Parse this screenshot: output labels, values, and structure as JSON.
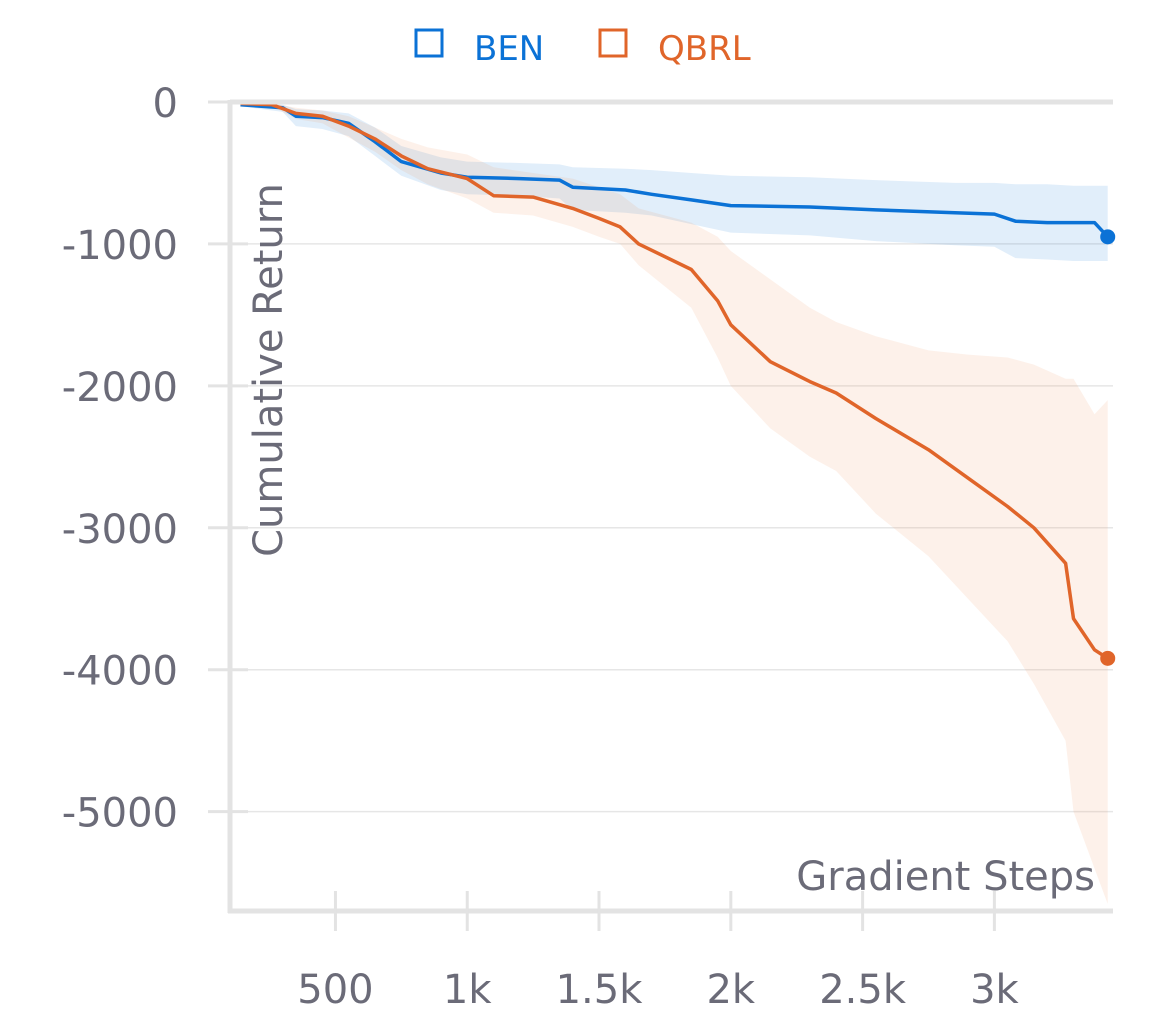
{
  "chart_data": {
    "type": "line",
    "title": "",
    "xlabel": "Gradient Steps",
    "ylabel": "Cumulative Return",
    "xlim": [
      100,
      3450
    ],
    "ylim": [
      -5700,
      0
    ],
    "x_ticks": [
      500,
      1000,
      1500,
      2000,
      2500,
      3000
    ],
    "x_tick_labels": [
      "500",
      "1k",
      "1.5k",
      "2k",
      "2.5k",
      "3k"
    ],
    "y_ticks": [
      0,
      -1000,
      -2000,
      -3000,
      -4000,
      -5000
    ],
    "y_tick_labels": [
      "0",
      "-1000",
      "-2000",
      "-3000",
      "-4000",
      "-5000"
    ],
    "grid": "horizontal",
    "legend_position": "top-center",
    "series": [
      {
        "name": "BEN",
        "color": "#0b72d6",
        "band_color": "#0b72d6",
        "x": [
          140,
          300,
          350,
          450,
          550,
          650,
          750,
          900,
          1000,
          1200,
          1350,
          1400,
          1600,
          1700,
          1850,
          2000,
          2300,
          2550,
          2850,
          3000,
          3080,
          3200,
          3300,
          3380,
          3430
        ],
        "y": [
          -20,
          -40,
          -100,
          -110,
          -150,
          -280,
          -420,
          -500,
          -530,
          -540,
          -550,
          -600,
          -620,
          -650,
          -690,
          -730,
          -740,
          -760,
          -780,
          -790,
          -840,
          -850,
          -850,
          -850,
          -950
        ],
        "upper": [
          -10,
          -20,
          -50,
          -60,
          -80,
          -180,
          -310,
          -390,
          -420,
          -430,
          -440,
          -460,
          -470,
          -480,
          -500,
          -520,
          -530,
          -550,
          -570,
          -570,
          -580,
          -580,
          -590,
          -590,
          -590
        ],
        "lower": [
          -30,
          -70,
          -170,
          -190,
          -240,
          -380,
          -520,
          -620,
          -650,
          -660,
          -680,
          -760,
          -780,
          -800,
          -860,
          -920,
          -940,
          -980,
          -1010,
          -1020,
          -1100,
          -1110,
          -1120,
          -1120,
          -1120
        ],
        "end_value": -950
      },
      {
        "name": "QBRL",
        "color": "#e0652a",
        "band_color": "#f28a52",
        "x": [
          140,
          260,
          350,
          450,
          550,
          650,
          750,
          850,
          1000,
          1100,
          1250,
          1400,
          1500,
          1580,
          1650,
          1850,
          1950,
          2000,
          2150,
          2300,
          2400,
          2550,
          2750,
          2900,
          3050,
          3150,
          3270,
          3300,
          3380,
          3430
        ],
        "y": [
          -10,
          -20,
          -80,
          -100,
          -170,
          -260,
          -380,
          -470,
          -540,
          -660,
          -670,
          -750,
          -820,
          -880,
          -1000,
          -1180,
          -1400,
          -1570,
          -1830,
          -1970,
          -2050,
          -2230,
          -2450,
          -2650,
          -2850,
          -3000,
          -3250,
          -3640,
          -3860,
          -3920
        ],
        "upper": [
          -5,
          -10,
          -40,
          -60,
          -100,
          -180,
          -260,
          -320,
          -370,
          -460,
          -500,
          -540,
          -600,
          -650,
          -750,
          -850,
          -950,
          -1050,
          -1250,
          -1450,
          -1550,
          -1650,
          -1750,
          -1780,
          -1800,
          -1850,
          -1950,
          -1950,
          -2200,
          -2100
        ],
        "lower": [
          -15,
          -30,
          -120,
          -150,
          -250,
          -350,
          -480,
          -580,
          -680,
          -780,
          -800,
          -880,
          -950,
          -1000,
          -1150,
          -1450,
          -1800,
          -2000,
          -2300,
          -2500,
          -2600,
          -2900,
          -3200,
          -3500,
          -3800,
          -4100,
          -4500,
          -5000,
          -5400,
          -5650
        ],
        "end_value": -3920
      }
    ]
  }
}
